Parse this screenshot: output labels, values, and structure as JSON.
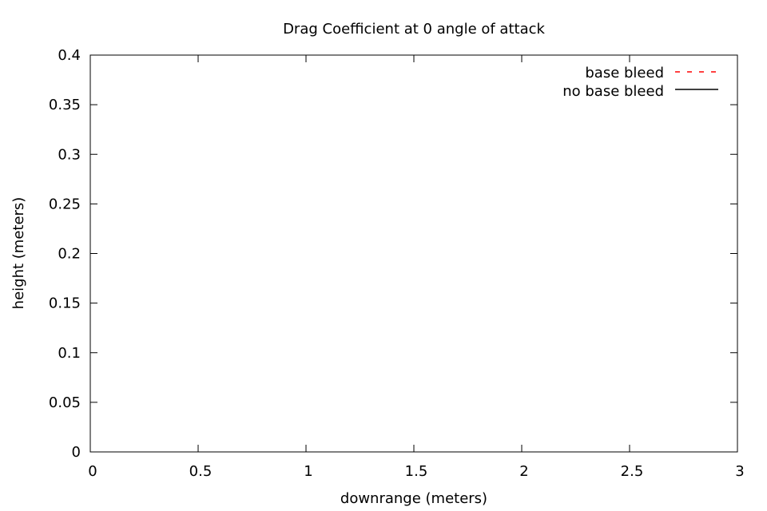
{
  "chart_data": {
    "type": "line",
    "title": "Drag Coefficient at 0 angle of attack",
    "xlabel": "downrange (meters)",
    "ylabel": "height (meters)",
    "xlim": [
      0,
      3
    ],
    "ylim": [
      0,
      0.4
    ],
    "xticks": [
      "0",
      "0.5",
      "1",
      "1.5",
      "2",
      "2.5",
      "3"
    ],
    "yticks": [
      "0",
      "0.05",
      "0.1",
      "0.15",
      "0.2",
      "0.25",
      "0.3",
      "0.35",
      "0.4"
    ],
    "grid": false,
    "legend_position": "top-right",
    "series": [
      {
        "name": "base bleed",
        "color": "#ff0000",
        "style": "dashed",
        "x": [],
        "y": []
      },
      {
        "name": "no base bleed",
        "color": "#000000",
        "style": "solid",
        "x": [],
        "y": []
      }
    ]
  }
}
